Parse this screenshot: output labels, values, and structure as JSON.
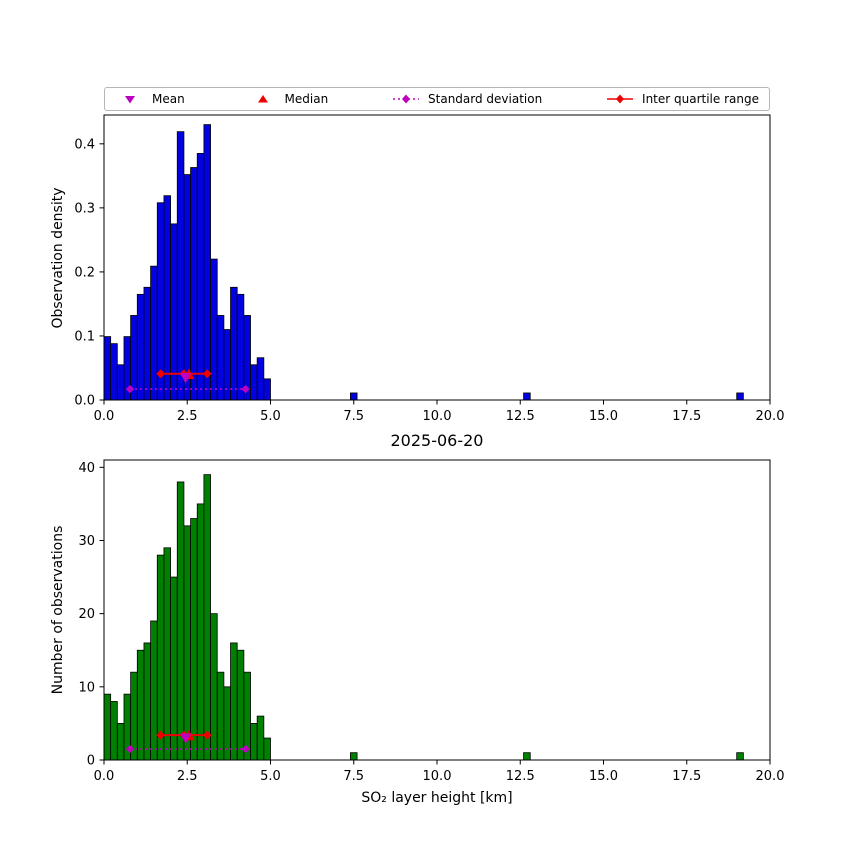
{
  "title": "2025-06-20",
  "legend": {
    "items": [
      {
        "label": "Mean",
        "marker": "triangle-down",
        "color": "#c000c0"
      },
      {
        "label": "Median",
        "marker": "triangle-up",
        "color": "#ee0000"
      },
      {
        "label": "Standard deviation",
        "marker": "diamond-dotted-line",
        "color": "#c000c0"
      },
      {
        "label": "Inter quartile range",
        "marker": "diamond-solid-line",
        "color": "#ee0000"
      }
    ]
  },
  "marker_colors": {
    "mean": "#c000c0",
    "median": "#ee0000",
    "std": "#c000c0",
    "iqr": "#ee0000"
  },
  "chart_data": [
    {
      "type": "bar",
      "panel": "top",
      "ylabel": "Observation density",
      "bar_color": "#0202e0",
      "edge_color": "#000000",
      "bin_start": 0.0,
      "bin_width": 0.2,
      "values": [
        0.099,
        0.088,
        0.055,
        0.099,
        0.132,
        0.165,
        0.176,
        0.209,
        0.308,
        0.319,
        0.275,
        0.419,
        0.352,
        0.363,
        0.385,
        0.43,
        0.22,
        0.132,
        0.11,
        0.176,
        0.165,
        0.132,
        0.055,
        0.066,
        0.033
      ],
      "outliers": [
        {
          "x": 7.5,
          "value": 0.011
        },
        {
          "x": 12.7,
          "value": 0.011
        },
        {
          "x": 19.1,
          "value": 0.011
        }
      ],
      "xlim": [
        0,
        20
      ],
      "ylim": [
        0,
        0.445
      ],
      "xticks": [
        0,
        2.5,
        5,
        7.5,
        10,
        12.5,
        15,
        17.5,
        20
      ],
      "xticklabels": [
        "0.0",
        "2.5",
        "5.0",
        "7.5",
        "10.0",
        "12.5",
        "15.0",
        "17.5",
        "20.0"
      ],
      "yticks": [
        0,
        0.1,
        0.2,
        0.3,
        0.4
      ],
      "yticklabels": [
        "0.0",
        "0.1",
        "0.2",
        "0.3",
        "0.4"
      ],
      "markers": {
        "mean_x": 2.45,
        "mean_y": 0.034,
        "median_x": 2.55,
        "median_y": 0.041,
        "std_x1": 0.78,
        "std_x2": 4.25,
        "std_y": 0.017,
        "iqr_x1": 1.7,
        "iqr_x2": 3.1,
        "iqr_xc": 2.4,
        "iqr_y": 0.041
      }
    },
    {
      "type": "bar",
      "panel": "bottom",
      "ylabel": "Number of observations",
      "xlabel": "SO₂ layer height [km]",
      "bar_color": "#008000",
      "edge_color": "#000000",
      "bin_start": 0.0,
      "bin_width": 0.2,
      "values": [
        9,
        8,
        5,
        9,
        12,
        15,
        16,
        19,
        28,
        29,
        25,
        38,
        32,
        33,
        35,
        39,
        20,
        12,
        10,
        16,
        15,
        12,
        5,
        6,
        3
      ],
      "outliers": [
        {
          "x": 7.5,
          "value": 1
        },
        {
          "x": 12.7,
          "value": 1
        },
        {
          "x": 19.1,
          "value": 1
        }
      ],
      "xlim": [
        0,
        20
      ],
      "ylim": [
        0,
        41
      ],
      "xticks": [
        0,
        2.5,
        5,
        7.5,
        10,
        12.5,
        15,
        17.5,
        20
      ],
      "xticklabels": [
        "0.0",
        "2.5",
        "5.0",
        "7.5",
        "10.0",
        "12.5",
        "15.0",
        "17.5",
        "20.0"
      ],
      "yticks": [
        0,
        10,
        20,
        30,
        40
      ],
      "yticklabels": [
        "0",
        "10",
        "20",
        "30",
        "40"
      ],
      "markers": {
        "mean_x": 2.45,
        "mean_y": 2.9,
        "median_x": 2.55,
        "median_y": 3.4,
        "std_x1": 0.78,
        "std_x2": 4.25,
        "std_y": 1.5,
        "iqr_x1": 1.7,
        "iqr_x2": 3.1,
        "iqr_xc": 2.4,
        "iqr_y": 3.4
      }
    }
  ]
}
